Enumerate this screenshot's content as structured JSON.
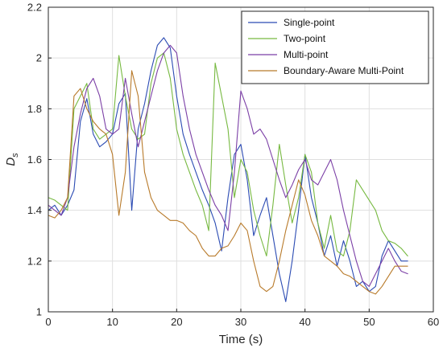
{
  "chart_data": {
    "type": "line",
    "title": "",
    "xlabel": "Time (s)",
    "ylabel": "D",
    "ylabel_subscript": "s",
    "xlim": [
      0,
      60
    ],
    "ylim": [
      1,
      2.2
    ],
    "xticks": [
      0,
      10,
      20,
      30,
      40,
      50,
      60
    ],
    "yticks": [
      1,
      1.2,
      1.4,
      1.6,
      1.8,
      2,
      2.2
    ],
    "grid": true,
    "legend_position": "top-right",
    "series": [
      {
        "name": "Single-point",
        "color": "#2b4bb3",
        "x": [
          0,
          1,
          2,
          3,
          4,
          5,
          6,
          7,
          8,
          9,
          10,
          11,
          12,
          13,
          14,
          15,
          16,
          17,
          18,
          19,
          20,
          21,
          22,
          23,
          24,
          25,
          26,
          27,
          28,
          29,
          30,
          31,
          32,
          33,
          34,
          35,
          36,
          37,
          38,
          39,
          40,
          41,
          42,
          43,
          44,
          45,
          46,
          47,
          48,
          49,
          50,
          51,
          52,
          53,
          54,
          55,
          56
        ],
        "y": [
          1.4,
          1.42,
          1.38,
          1.42,
          1.48,
          1.75,
          1.84,
          1.7,
          1.65,
          1.67,
          1.7,
          1.82,
          1.86,
          1.4,
          1.72,
          1.82,
          1.95,
          2.05,
          2.08,
          2.04,
          1.85,
          1.7,
          1.62,
          1.55,
          1.48,
          1.42,
          1.35,
          1.24,
          1.45,
          1.62,
          1.66,
          1.52,
          1.3,
          1.38,
          1.45,
          1.3,
          1.15,
          1.04,
          1.2,
          1.4,
          1.62,
          1.45,
          1.35,
          1.22,
          1.3,
          1.18,
          1.28,
          1.2,
          1.1,
          1.12,
          1.08,
          1.1,
          1.22,
          1.28,
          1.24,
          1.2,
          1.2
        ]
      },
      {
        "name": "Two-point",
        "color": "#77b941",
        "x": [
          0,
          1,
          2,
          3,
          4,
          5,
          6,
          7,
          8,
          9,
          10,
          11,
          12,
          13,
          14,
          15,
          16,
          17,
          18,
          19,
          20,
          21,
          22,
          23,
          24,
          25,
          26,
          27,
          28,
          29,
          30,
          31,
          32,
          33,
          34,
          35,
          36,
          37,
          38,
          39,
          40,
          41,
          42,
          43,
          44,
          45,
          46,
          47,
          48,
          49,
          50,
          51,
          52,
          53,
          54,
          55,
          56
        ],
        "y": [
          1.45,
          1.44,
          1.42,
          1.4,
          1.8,
          1.85,
          1.9,
          1.72,
          1.68,
          1.7,
          1.72,
          2.01,
          1.85,
          1.72,
          1.68,
          1.7,
          1.9,
          2.0,
          2.02,
          1.92,
          1.72,
          1.62,
          1.55,
          1.48,
          1.42,
          1.32,
          1.98,
          1.85,
          1.72,
          1.45,
          1.6,
          1.55,
          1.4,
          1.3,
          1.22,
          1.42,
          1.66,
          1.5,
          1.35,
          1.45,
          1.62,
          1.55,
          1.35,
          1.25,
          1.38,
          1.24,
          1.22,
          1.32,
          1.52,
          1.48,
          1.44,
          1.4,
          1.32,
          1.28,
          1.27,
          1.25,
          1.22
        ]
      },
      {
        "name": "Multi-point",
        "color": "#7b3fa6",
        "x": [
          0,
          1,
          2,
          3,
          4,
          5,
          6,
          7,
          8,
          9,
          10,
          11,
          12,
          13,
          14,
          15,
          16,
          17,
          18,
          19,
          20,
          21,
          22,
          23,
          24,
          25,
          26,
          27,
          28,
          29,
          30,
          31,
          32,
          33,
          34,
          35,
          36,
          37,
          38,
          39,
          40,
          41,
          42,
          43,
          44,
          45,
          46,
          47,
          48,
          49,
          50,
          51,
          52,
          53,
          54,
          55,
          56
        ],
        "y": [
          1.42,
          1.4,
          1.38,
          1.45,
          1.65,
          1.78,
          1.88,
          1.92,
          1.85,
          1.72,
          1.7,
          1.72,
          1.92,
          1.78,
          1.65,
          1.75,
          1.85,
          1.95,
          2.02,
          2.05,
          2.02,
          1.85,
          1.72,
          1.62,
          1.55,
          1.48,
          1.42,
          1.38,
          1.32,
          1.55,
          1.87,
          1.8,
          1.7,
          1.72,
          1.68,
          1.6,
          1.52,
          1.45,
          1.5,
          1.56,
          1.6,
          1.52,
          1.5,
          1.55,
          1.6,
          1.52,
          1.4,
          1.3,
          1.2,
          1.12,
          1.1,
          1.15,
          1.2,
          1.25,
          1.2,
          1.16,
          1.15
        ]
      },
      {
        "name": "Boundary-Aware Multi-Point",
        "color": "#b87a2a",
        "x": [
          0,
          1,
          2,
          3,
          4,
          5,
          6,
          7,
          8,
          9,
          10,
          11,
          12,
          13,
          14,
          15,
          16,
          17,
          18,
          19,
          20,
          21,
          22,
          23,
          24,
          25,
          26,
          27,
          28,
          29,
          30,
          31,
          32,
          33,
          34,
          35,
          36,
          37,
          38,
          39,
          40,
          41,
          42,
          43,
          44,
          45,
          46,
          47,
          48,
          49,
          50,
          51,
          52,
          53,
          54,
          55,
          56
        ],
        "y": [
          1.38,
          1.37,
          1.4,
          1.45,
          1.85,
          1.88,
          1.8,
          1.75,
          1.72,
          1.7,
          1.62,
          1.38,
          1.55,
          1.95,
          1.85,
          1.55,
          1.45,
          1.4,
          1.38,
          1.36,
          1.36,
          1.35,
          1.32,
          1.3,
          1.25,
          1.22,
          1.22,
          1.25,
          1.26,
          1.3,
          1.35,
          1.32,
          1.2,
          1.1,
          1.08,
          1.1,
          1.2,
          1.32,
          1.42,
          1.52,
          1.46,
          1.36,
          1.3,
          1.22,
          1.2,
          1.18,
          1.15,
          1.14,
          1.12,
          1.1,
          1.08,
          1.07,
          1.1,
          1.14,
          1.18,
          1.18,
          1.18
        ]
      }
    ]
  }
}
